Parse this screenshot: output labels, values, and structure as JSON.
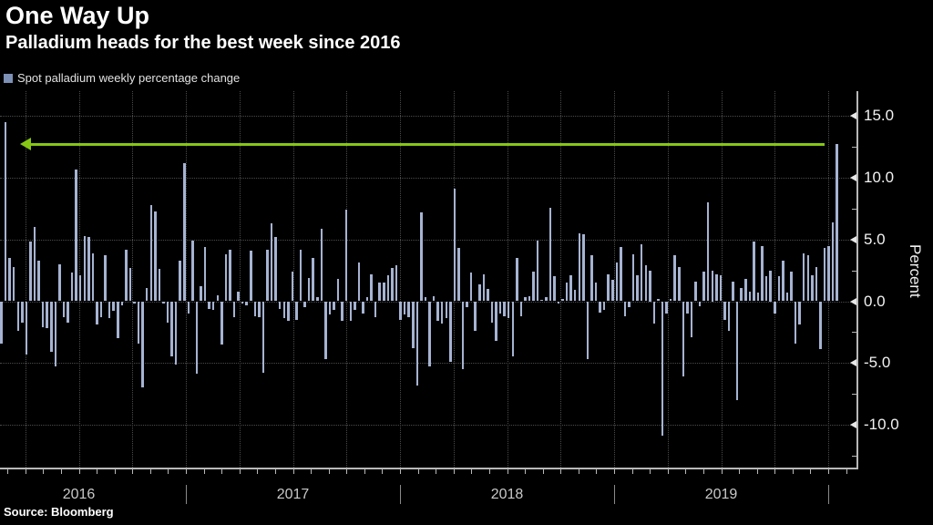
{
  "header": {
    "title": "One Way Up",
    "subtitle": "Palladium heads for the best week since 2016"
  },
  "legend": {
    "label": "Spot palladium weekly percentage change"
  },
  "source": {
    "label": "Source: Bloomberg"
  },
  "y_axis": {
    "title": "Percent",
    "major_ticks": [
      {
        "label": "15.0",
        "value": 15
      },
      {
        "label": "10.0",
        "value": 10
      },
      {
        "label": "5.0",
        "value": 5
      },
      {
        "label": "0.0",
        "value": 0
      },
      {
        "label": "-5.0",
        "value": -5
      },
      {
        "label": "-10.0",
        "value": -10
      }
    ],
    "minor_tick_values": [
      12.5,
      7.5,
      2.5,
      -2.5,
      -7.5,
      -12.5
    ]
  },
  "x_axis": {
    "year_labels": [
      "2016",
      "2017",
      "2018",
      "2019"
    ]
  },
  "annotation": {
    "shape": "left-arrow",
    "meaning": "current week's gain points back to early-2016 record",
    "value_level": 12.7
  },
  "colors": {
    "background": "#000000",
    "bar": "#a6b3d2",
    "legend_swatch": "#7d90b5",
    "grid": "#4a4a4a",
    "axis": "#b8b8b8",
    "title_text": "#ffffff",
    "tick_text": "#f2f2f2",
    "year_text": "#c9c9c9",
    "arrow_green": "#85c714"
  },
  "chart_data": {
    "type": "bar",
    "title": "One Way Up",
    "subtitle": "Palladium heads for the best week since 2016",
    "series_name": "Spot palladium weekly percentage change",
    "ylabel": "Percent",
    "unit": "percent",
    "frequency": "weekly",
    "x_start": "2016-02",
    "x_end": "2019-12",
    "x_year_ticks": [
      2016,
      2017,
      2018,
      2019
    ],
    "ylim_visible": [
      -13.5,
      17
    ],
    "grid": "dotted",
    "legend_position": "top-left",
    "max_value": 14.5,
    "last_value": 12.7,
    "values": [
      -3.4,
      14.5,
      3.5,
      2.8,
      -2.4,
      -1.7,
      -4.3,
      4.8,
      6.0,
      3.3,
      -2.1,
      -2.2,
      -4.1,
      -5.3,
      3.0,
      -1.3,
      -1.7,
      2.3,
      10.7,
      2.1,
      5.3,
      5.2,
      3.9,
      -1.9,
      -1.3,
      3.7,
      -1.4,
      -0.8,
      -3.0,
      -0.3,
      4.2,
      2.7,
      -0.2,
      -3.4,
      -7.0,
      1.1,
      7.8,
      7.3,
      2.6,
      -0.2,
      -1.7,
      -4.5,
      -5.1,
      3.3,
      11.2,
      -1.0,
      4.9,
      -5.9,
      1.2,
      4.4,
      -0.6,
      -0.7,
      0.5,
      -3.5,
      3.8,
      4.2,
      -1.3,
      0.8,
      -0.2,
      -0.3,
      4.1,
      -1.2,
      -1.3,
      -5.8,
      4.2,
      6.3,
      5.2,
      -0.6,
      -1.4,
      -1.6,
      2.4,
      -1.5,
      4.2,
      -0.5,
      1.9,
      3.5,
      0.3,
      5.9,
      -4.7,
      -1.1,
      -0.7,
      1.8,
      -1.6,
      7.4,
      -1.6,
      -0.7,
      3.1,
      -1.0,
      0.3,
      2.2,
      -1.3,
      1.5,
      1.5,
      2.1,
      2.7,
      2.9,
      -1.5,
      -1.1,
      -1.3,
      -3.8,
      -6.8,
      7.2,
      0.3,
      -5.3,
      0.4,
      -1.6,
      -1.8,
      -1.4,
      -4.9,
      9.1,
      4.3,
      -5.5,
      -0.5,
      2.3,
      -2.4,
      1.4,
      2.2,
      1.0,
      -1.7,
      -3.2,
      -1.0,
      -1.2,
      -1.4,
      -4.5,
      3.5,
      -1.2,
      0.3,
      0.4,
      2.4,
      4.9,
      0.1,
      0.3,
      7.6,
      2.0,
      -0.2,
      0.2,
      1.5,
      2.1,
      0.9,
      5.5,
      5.4,
      -4.7,
      3.7,
      1.5,
      -0.9,
      -0.7,
      2.2,
      1.7,
      3.1,
      4.4,
      -1.2,
      -0.5,
      3.8,
      2.1,
      4.6,
      2.9,
      2.5,
      -1.8,
      0.2,
      -10.9,
      -1.0,
      0.2,
      3.7,
      2.8,
      -6.1,
      -1.0,
      -2.9,
      1.6,
      -0.4,
      2.4,
      8.0,
      2.5,
      2.2,
      2.1,
      -1.5,
      -2.4,
      1.6,
      -8.0,
      1.1,
      1.8,
      0.8,
      4.8,
      0.7,
      4.5,
      2.0,
      2.5,
      -1.0,
      2.0,
      3.3,
      0.7,
      2.4,
      -3.4,
      -1.9,
      3.9,
      3.7,
      2.1,
      2.8,
      -3.9,
      4.3,
      4.5,
      6.4,
      12.7
    ]
  }
}
